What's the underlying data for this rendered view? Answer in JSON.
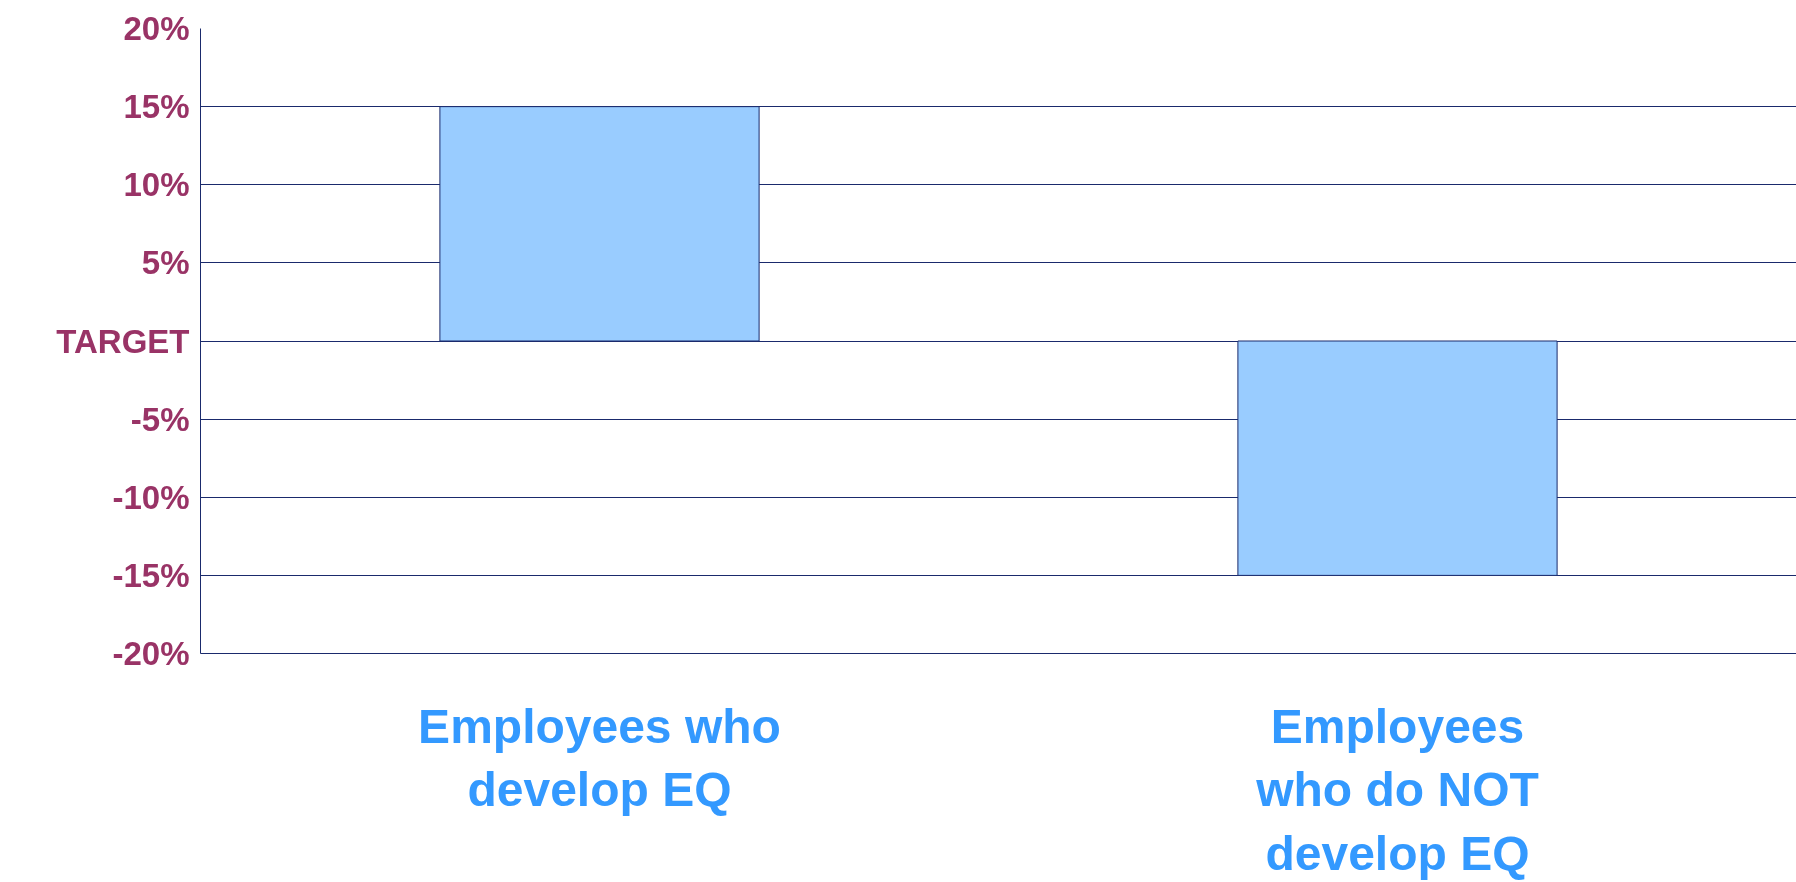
{
  "chart_data": {
    "type": "bar",
    "categories": [
      "Employees who\ndevelop EQ",
      "Employees\nwho do NOT\ndevelop EQ"
    ],
    "values": [
      15,
      -15
    ],
    "color": "#99ccff",
    "ylim": [
      -20,
      20
    ],
    "yticks": [
      {
        "value": -20,
        "label": "-20%"
      },
      {
        "value": -15,
        "label": "-15%"
      },
      {
        "value": -10,
        "label": "-10%"
      },
      {
        "value": -5,
        "label": "-5%"
      },
      {
        "value": 0,
        "label": "TARGET"
      },
      {
        "value": 5,
        "label": "5%"
      },
      {
        "value": 10,
        "label": "10%"
      },
      {
        "value": 15,
        "label": "15%"
      },
      {
        "value": 20,
        "label": "20%"
      }
    ],
    "grid": "y"
  }
}
